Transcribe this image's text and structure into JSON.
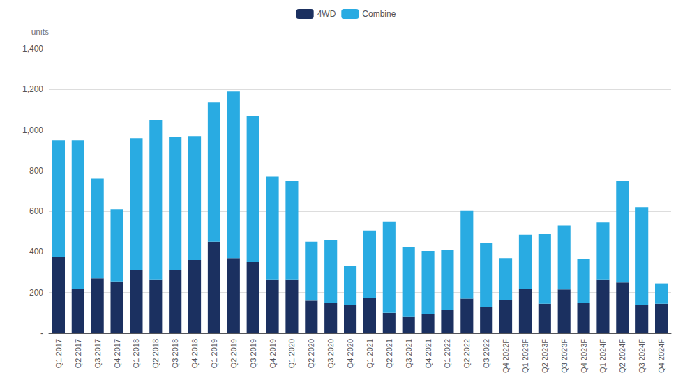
{
  "chart_data": {
    "type": "bar",
    "stacked": true,
    "ylabel": "units",
    "categories": [
      "Q1 2017",
      "Q2 2017",
      "Q3 2017",
      "Q4 2017",
      "Q1 2018",
      "Q2 2018",
      "Q3 2018",
      "Q4 2018",
      "Q1 2019",
      "Q2 2019",
      "Q3 2019",
      "Q4 2019",
      "Q1 2020",
      "Q2 2020",
      "Q3 2020",
      "Q4 2020",
      "Q1 2021",
      "Q2 2021",
      "Q3 2021",
      "Q4 2021",
      "Q1 2022",
      "Q2 2022",
      "Q3 2022",
      "Q4 2022F",
      "Q1 2023F",
      "Q2 2023F",
      "Q3 2023F",
      "Q4 2023F",
      "Q1 2024F",
      "Q2 2024F",
      "Q3 2024F",
      "Q4 2024F"
    ],
    "series": [
      {
        "name": "4WD",
        "color": "#1b3060",
        "values": [
          375,
          220,
          270,
          255,
          310,
          265,
          310,
          360,
          450,
          370,
          350,
          265,
          265,
          160,
          150,
          140,
          175,
          100,
          80,
          95,
          115,
          170,
          130,
          165,
          220,
          145,
          215,
          150,
          265,
          250,
          140,
          145
        ]
      },
      {
        "name": "Combine",
        "color": "#29abe2",
        "values": [
          575,
          730,
          490,
          355,
          650,
          785,
          655,
          610,
          685,
          820,
          720,
          505,
          485,
          290,
          310,
          190,
          330,
          450,
          345,
          310,
          295,
          435,
          315,
          205,
          265,
          345,
          315,
          215,
          280,
          500,
          480,
          100
        ]
      }
    ],
    "ylim": [
      0,
      1400
    ],
    "yticks": [
      {
        "value": 0,
        "label": "-"
      },
      200,
      400,
      600,
      800,
      {
        "value": 1000,
        "label": "1,000"
      },
      {
        "value": 1200,
        "label": "1,200"
      },
      {
        "value": 1400,
        "label": "1,400"
      }
    ],
    "grid": true,
    "legend": "top"
  }
}
